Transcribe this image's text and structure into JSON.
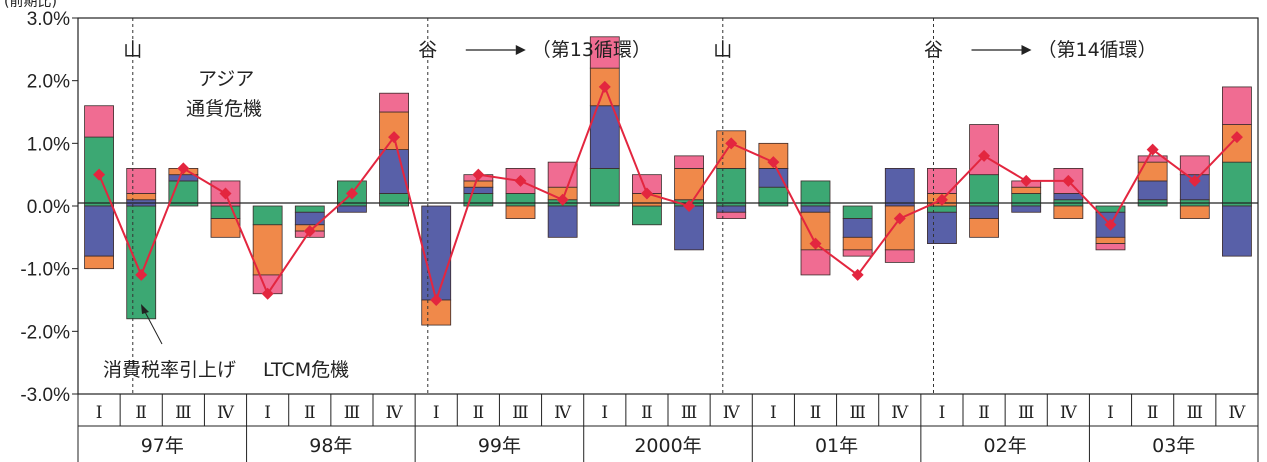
{
  "chart_data": {
    "type": "bar",
    "subtype": "stacked bar with line (growth contribution)",
    "unit_label": "(前期比)",
    "ylim": [
      -3.0,
      3.0
    ],
    "y_ticks": [
      "3.0%",
      "2.0%",
      "1.0%",
      "0.0%",
      "-1.0%",
      "-2.0%",
      "-3.0%"
    ],
    "grid": false,
    "quarter_labels": [
      "Ⅰ",
      "Ⅱ",
      "Ⅲ",
      "Ⅳ",
      "Ⅰ",
      "Ⅱ",
      "Ⅲ",
      "Ⅳ",
      "Ⅰ",
      "Ⅱ",
      "Ⅲ",
      "Ⅳ",
      "Ⅰ",
      "Ⅱ",
      "Ⅲ",
      "Ⅳ",
      "Ⅰ",
      "Ⅱ",
      "Ⅲ",
      "Ⅳ",
      "Ⅰ",
      "Ⅱ",
      "Ⅲ",
      "Ⅳ",
      "Ⅰ",
      "Ⅱ",
      "Ⅲ",
      "Ⅳ"
    ],
    "year_labels": [
      "97年",
      "98年",
      "99年",
      "2000年",
      "01年",
      "02年",
      "03年"
    ],
    "colors": {
      "green": "#3ca873",
      "blue": "#5860a8",
      "orange": "#f0894a",
      "pink": "#f06c92",
      "line": "#e3263f"
    },
    "series": [
      {
        "color_key": "green",
        "values": [
          1.1,
          -1.8,
          0.4,
          -0.2,
          -0.3,
          -0.1,
          0.4,
          0.2,
          0.0,
          0.2,
          0.2,
          0.1,
          0.6,
          -0.3,
          0.1,
          0.6,
          0.3,
          0.4,
          -0.2,
          0.0,
          -0.1,
          0.5,
          0.2,
          0.1,
          -0.1,
          0.1,
          0.1,
          0.7
        ]
      },
      {
        "color_key": "blue",
        "values": [
          -0.8,
          0.1,
          0.1,
          0.0,
          0.0,
          -0.2,
          -0.1,
          0.7,
          -1.5,
          0.1,
          0.0,
          -0.5,
          1.0,
          0.0,
          -0.7,
          -0.1,
          0.3,
          -0.1,
          -0.3,
          0.6,
          -0.5,
          -0.2,
          -0.1,
          0.1,
          -0.4,
          0.3,
          0.4,
          -0.8
        ]
      },
      {
        "color_key": "orange",
        "values": [
          -0.2,
          0.1,
          0.1,
          -0.3,
          -0.8,
          -0.1,
          0.0,
          0.6,
          -0.4,
          0.1,
          -0.2,
          0.2,
          0.6,
          0.2,
          0.5,
          0.6,
          0.4,
          -0.6,
          -0.2,
          -0.7,
          0.2,
          -0.3,
          0.1,
          -0.2,
          -0.1,
          0.3,
          -0.2,
          0.6
        ]
      },
      {
        "color_key": "pink",
        "values": [
          0.5,
          0.4,
          0.0,
          0.4,
          -0.3,
          -0.1,
          0.0,
          0.3,
          0.0,
          0.1,
          0.4,
          0.4,
          0.5,
          0.3,
          0.2,
          -0.1,
          0.0,
          -0.4,
          -0.1,
          -0.2,
          0.4,
          0.8,
          0.1,
          0.4,
          -0.1,
          0.1,
          0.3,
          0.6
        ]
      },
      {
        "color_key": "line",
        "is_line": true,
        "values": [
          0.5,
          -1.1,
          0.6,
          0.2,
          -1.4,
          -0.4,
          0.2,
          1.1,
          -1.5,
          0.5,
          0.4,
          0.1,
          1.9,
          0.2,
          0.0,
          1.0,
          0.7,
          -0.6,
          -1.1,
          -0.2,
          0.1,
          0.8,
          0.4,
          0.4,
          -0.3,
          0.9,
          0.4,
          1.1
        ]
      }
    ],
    "cycle_markers": [
      {
        "label": "山",
        "index": 1
      },
      {
        "label": "谷",
        "index": 8,
        "arrow_text": "（第13循環）"
      },
      {
        "label": "山",
        "index": 15
      },
      {
        "label": "谷",
        "index": 20,
        "arrow_text": "（第14循環）"
      }
    ],
    "annotations": {
      "asia_line1": "アジア",
      "asia_line2": "通貨危機",
      "tax": "消費税率引上げ",
      "ltcm": "LTCM危機"
    }
  }
}
